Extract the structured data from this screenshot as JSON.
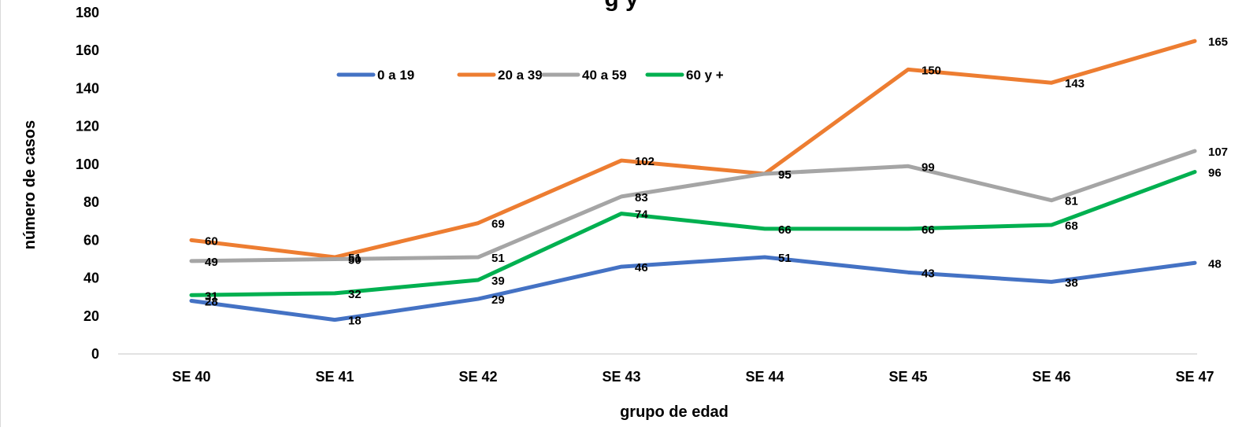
{
  "chart_data": {
    "type": "line",
    "title": "g y",
    "xlabel": "grupo de edad",
    "ylabel": "número de casos",
    "categories": [
      "SE  40",
      "SE  41",
      "SE  42",
      "SE  43",
      "SE  44",
      "SE  45",
      "SE  46",
      "SE  47"
    ],
    "ylim": [
      0,
      180
    ],
    "yticks": [
      "0",
      "20",
      "40",
      "60",
      "80",
      "100",
      "120",
      "140",
      "160",
      "180"
    ],
    "grid": false,
    "legend_position": "top-center",
    "data_labels": true,
    "series": [
      {
        "name": "0 a 19",
        "color": "#4472C4",
        "values": [
          28,
          18,
          29,
          46,
          51,
          43,
          38,
          48
        ]
      },
      {
        "name": "20 a 39",
        "color": "#ED7D31",
        "values": [
          60,
          51,
          69,
          102,
          95,
          150,
          143,
          165
        ]
      },
      {
        "name": "40 a 59",
        "color": "#A5A5A5",
        "values": [
          49,
          50,
          51,
          83,
          95,
          99,
          81,
          107
        ]
      },
      {
        "name": "60 y +",
        "color": "#00B050",
        "values": [
          31,
          32,
          39,
          74,
          66,
          66,
          68,
          96
        ]
      }
    ]
  }
}
